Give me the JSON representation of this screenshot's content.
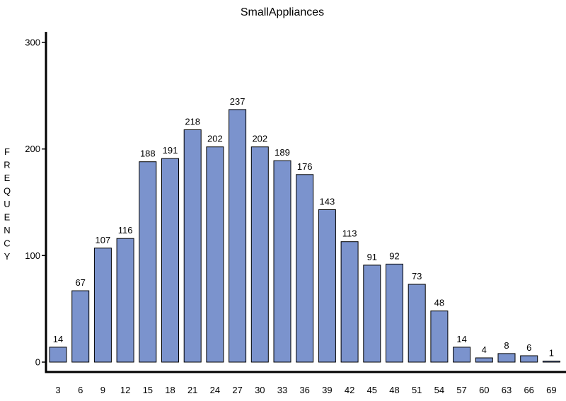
{
  "chart_data": {
    "type": "bar",
    "title": "SmallAppliances",
    "xlabel": "",
    "ylabel": "FREQUENCY",
    "ylabel_letters": [
      "F",
      "R",
      "E",
      "Q",
      "U",
      "E",
      "N",
      "C",
      "Y"
    ],
    "ylim": [
      0,
      300
    ],
    "yticks": [
      0,
      100,
      200,
      300
    ],
    "categories": [
      "3",
      "6",
      "9",
      "12",
      "15",
      "18",
      "21",
      "24",
      "27",
      "30",
      "33",
      "36",
      "39",
      "42",
      "45",
      "48",
      "51",
      "54",
      "57",
      "60",
      "63",
      "66",
      "69"
    ],
    "values": [
      14,
      67,
      107,
      116,
      188,
      191,
      218,
      202,
      237,
      202,
      189,
      176,
      143,
      113,
      91,
      92,
      73,
      48,
      14,
      4,
      8,
      6,
      1
    ],
    "grid": false,
    "legend": "none",
    "bar_color": "#7b93cd",
    "bar_edge_color": "#000000"
  }
}
